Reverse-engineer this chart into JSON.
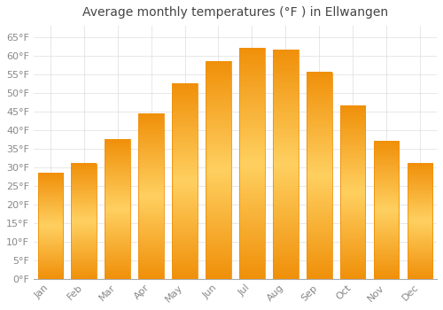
{
  "title": "Average monthly temperatures (°F ) in Ellwangen",
  "months": [
    "Jan",
    "Feb",
    "Mar",
    "Apr",
    "May",
    "Jun",
    "Jul",
    "Aug",
    "Sep",
    "Oct",
    "Nov",
    "Dec"
  ],
  "values": [
    28.5,
    31.0,
    37.5,
    44.5,
    52.5,
    58.5,
    62.0,
    61.5,
    55.5,
    46.5,
    37.0,
    31.0
  ],
  "bar_color_center": "#FFD060",
  "bar_color_edge": "#F0900A",
  "background_color": "#FFFFFF",
  "grid_color": "#DDDDDD",
  "text_color": "#888888",
  "title_color": "#444444",
  "ylim": [
    0,
    68
  ],
  "yticks": [
    0,
    5,
    10,
    15,
    20,
    25,
    30,
    35,
    40,
    45,
    50,
    55,
    60,
    65
  ],
  "title_fontsize": 10,
  "axis_fontsize": 8,
  "bar_width": 0.75
}
